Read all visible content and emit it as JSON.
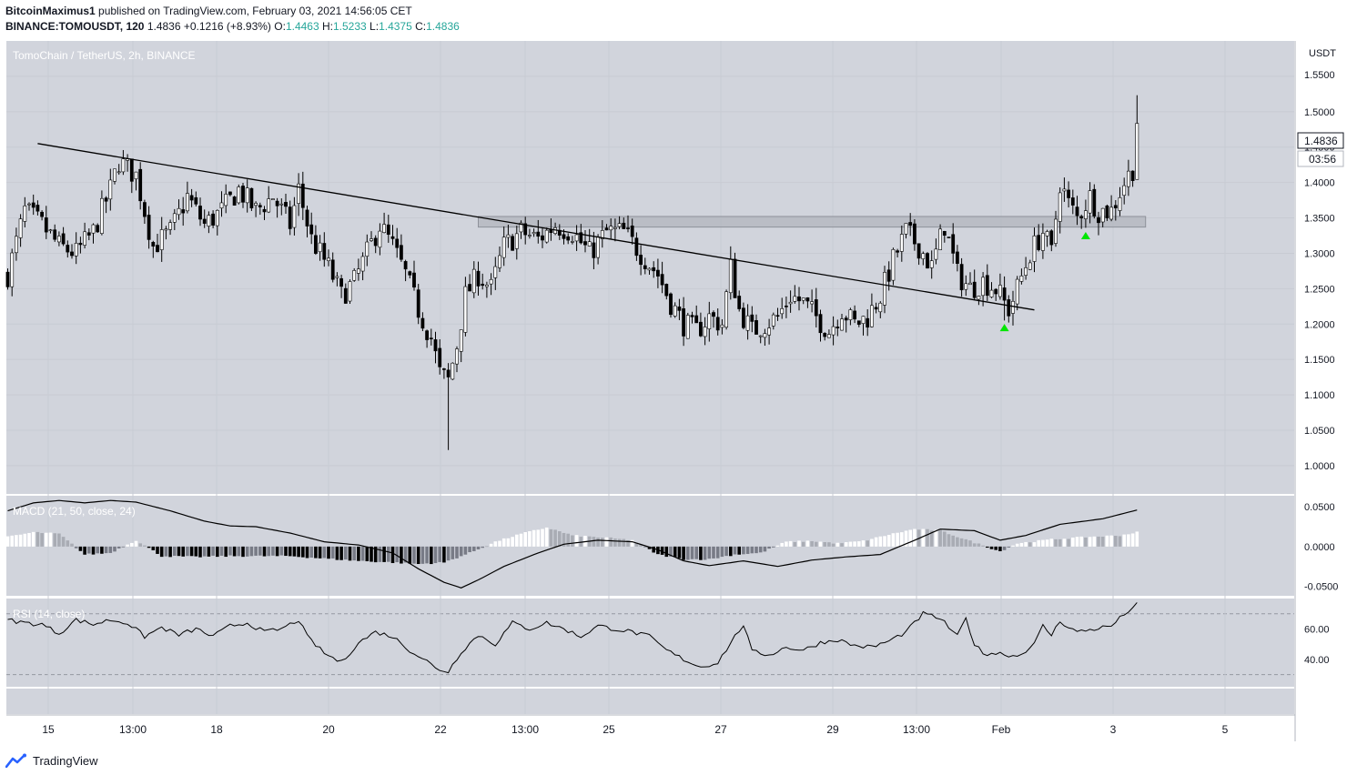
{
  "header": {
    "author": "BitcoinMaximus1",
    "published_text": " published on TradingView.com, February 03, 2021 14:56:05 CET",
    "symbol": "BINANCE:TOMOUSDT, 120",
    "last": "1.4836",
    "change": "+0.1216 (+8.93%)",
    "o_label": "O:",
    "o": "1.4463",
    "h_label": "H:",
    "h": "1.5233",
    "l_label": "L:",
    "l": "1.4375",
    "c_label": "C:",
    "c": "1.4836"
  },
  "chart_title": "TomoChain / TetherUS, 2h, BINANCE",
  "currency": "USDT",
  "price_label": "1.4836",
  "countdown": "03:56",
  "macd_title": "MACD (21, 50, close, 24)",
  "rsi_title": "RSI (14, close)",
  "brand": "TradingView",
  "colors": {
    "panel_bg": "#d1d4dc",
    "up": "#ffffff",
    "down": "#000000",
    "signal": "#00e600",
    "zone": "#b2b5be"
  },
  "chart_data": [
    {
      "type": "candlestick",
      "title": "TomoChain / TetherUS, 2h, BINANCE",
      "x_ticks": [
        "15",
        "13:00",
        "18",
        "20",
        "22",
        "13:00",
        "25",
        "27",
        "29",
        "13:00",
        "Feb",
        "3",
        "5"
      ],
      "y_ticks": [
        "1.0000",
        "1.0500",
        "1.1000",
        "1.1500",
        "1.2000",
        "1.2500",
        "1.3000",
        "1.3500",
        "1.4000",
        "1.4500",
        "1.5000",
        "1.5500"
      ],
      "ylim": [
        0.96,
        1.6
      ],
      "last_price": 1.4836,
      "close_path": [
        [
          0,
          1.27
        ],
        [
          4,
          1.36
        ],
        [
          8,
          1.34
        ],
        [
          12,
          1.31
        ],
        [
          16,
          1.3
        ],
        [
          20,
          1.33
        ],
        [
          24,
          1.39
        ],
        [
          26,
          1.43
        ],
        [
          30,
          1.41
        ],
        [
          34,
          1.31
        ],
        [
          38,
          1.33
        ],
        [
          42,
          1.38
        ],
        [
          46,
          1.34
        ],
        [
          50,
          1.36
        ],
        [
          54,
          1.39
        ],
        [
          58,
          1.36
        ],
        [
          62,
          1.38
        ],
        [
          66,
          1.34
        ],
        [
          68,
          1.39
        ],
        [
          71,
          1.32
        ],
        [
          75,
          1.28
        ],
        [
          78,
          1.24
        ],
        [
          81,
          1.26
        ],
        [
          84,
          1.3
        ],
        [
          87,
          1.34
        ],
        [
          90,
          1.31
        ],
        [
          93,
          1.27
        ],
        [
          96,
          1.22
        ],
        [
          99,
          1.18
        ],
        [
          101,
          1.13
        ],
        [
          103,
          1.12
        ],
        [
          105,
          1.17
        ],
        [
          107,
          1.24
        ],
        [
          110,
          1.27
        ],
        [
          113,
          1.25
        ],
        [
          116,
          1.31
        ],
        [
          120,
          1.33
        ],
        [
          124,
          1.32
        ],
        [
          128,
          1.34
        ],
        [
          132,
          1.33
        ],
        [
          136,
          1.3
        ],
        [
          140,
          1.33
        ],
        [
          144,
          1.33
        ],
        [
          148,
          1.3
        ],
        [
          152,
          1.27
        ],
        [
          155,
          1.23
        ],
        [
          158,
          1.2
        ],
        [
          161,
          1.19
        ],
        [
          164,
          1.21
        ],
        [
          167,
          1.2
        ],
        [
          169,
          1.28
        ],
        [
          171,
          1.22
        ],
        [
          174,
          1.19
        ],
        [
          177,
          1.2
        ],
        [
          180,
          1.21
        ],
        [
          183,
          1.24
        ],
        [
          186,
          1.23
        ],
        [
          189,
          1.21
        ],
        [
          192,
          1.19
        ],
        [
          195,
          1.22
        ],
        [
          198,
          1.2
        ],
        [
          201,
          1.21
        ],
        [
          204,
          1.24
        ],
        [
          207,
          1.29
        ],
        [
          210,
          1.33
        ],
        [
          213,
          1.31
        ],
        [
          216,
          1.28
        ],
        [
          219,
          1.34
        ],
        [
          222,
          1.27
        ],
        [
          225,
          1.25
        ],
        [
          228,
          1.26
        ],
        [
          231,
          1.25
        ],
        [
          234,
          1.22
        ],
        [
          236,
          1.25
        ],
        [
          239,
          1.3
        ],
        [
          242,
          1.33
        ],
        [
          244,
          1.3
        ],
        [
          246,
          1.4
        ],
        [
          248,
          1.37
        ],
        [
          250,
          1.35
        ],
        [
          253,
          1.38
        ],
        [
          255,
          1.36
        ],
        [
          258,
          1.36
        ],
        [
          261,
          1.4
        ],
        [
          263,
          1.42
        ],
        [
          264,
          1.4836
        ]
      ],
      "descending_trendline": {
        "from": [
          7,
          1.455
        ],
        "to": [
          240,
          1.22
        ]
      },
      "resistance_zone": {
        "from": 110,
        "to": 266,
        "low": 1.337,
        "high": 1.352
      },
      "signals": [
        {
          "x": 233,
          "price": 1.195
        },
        {
          "x": 252,
          "price": 1.325
        }
      ]
    },
    {
      "type": "bar",
      "title": "MACD (21, 50, close, 24)",
      "y_ticks": [
        "0.0500",
        "0.0000",
        "-0.0500"
      ],
      "ylim": [
        -0.062,
        0.064
      ],
      "macd_line": [
        [
          0,
          0.045
        ],
        [
          6,
          0.055
        ],
        [
          12,
          0.058
        ],
        [
          18,
          0.055
        ],
        [
          24,
          0.058
        ],
        [
          30,
          0.056
        ],
        [
          38,
          0.045
        ],
        [
          46,
          0.032
        ],
        [
          52,
          0.026
        ],
        [
          58,
          0.025
        ],
        [
          66,
          0.017
        ],
        [
          74,
          0.006
        ],
        [
          82,
          0.002
        ],
        [
          90,
          -0.008
        ],
        [
          96,
          -0.028
        ],
        [
          102,
          -0.045
        ],
        [
          106,
          -0.052
        ],
        [
          110,
          -0.042
        ],
        [
          116,
          -0.025
        ],
        [
          124,
          -0.008
        ],
        [
          130,
          0.003
        ],
        [
          138,
          0.008
        ],
        [
          146,
          0.006
        ],
        [
          152,
          -0.004
        ],
        [
          158,
          -0.018
        ],
        [
          164,
          -0.024
        ],
        [
          172,
          -0.018
        ],
        [
          180,
          -0.025
        ],
        [
          188,
          -0.017
        ],
        [
          196,
          -0.013
        ],
        [
          204,
          -0.01
        ],
        [
          212,
          0.008
        ],
        [
          218,
          0.022
        ],
        [
          226,
          0.02
        ],
        [
          232,
          0.008
        ],
        [
          238,
          0.014
        ],
        [
          246,
          0.028
        ],
        [
          256,
          0.035
        ],
        [
          264,
          0.046
        ]
      ],
      "histogram": [
        [
          0,
          0.012
        ],
        [
          6,
          0.018
        ],
        [
          12,
          0.016
        ],
        [
          18,
          -0.01
        ],
        [
          24,
          -0.008
        ],
        [
          30,
          0.008
        ],
        [
          36,
          -0.012
        ],
        [
          44,
          -0.013
        ],
        [
          52,
          -0.012
        ],
        [
          60,
          -0.012
        ],
        [
          66,
          -0.012
        ],
        [
          74,
          -0.015
        ],
        [
          82,
          -0.018
        ],
        [
          90,
          -0.02
        ],
        [
          96,
          -0.022
        ],
        [
          102,
          -0.02
        ],
        [
          108,
          -0.008
        ],
        [
          114,
          0.006
        ],
        [
          120,
          0.016
        ],
        [
          126,
          0.024
        ],
        [
          132,
          0.014
        ],
        [
          140,
          0.011
        ],
        [
          146,
          0.008
        ],
        [
          152,
          -0.01
        ],
        [
          158,
          -0.016
        ],
        [
          164,
          -0.016
        ],
        [
          170,
          -0.01
        ],
        [
          176,
          -0.008
        ],
        [
          182,
          0.006
        ],
        [
          188,
          0.007
        ],
        [
          194,
          0.004
        ],
        [
          200,
          0.007
        ],
        [
          206,
          0.015
        ],
        [
          212,
          0.022
        ],
        [
          218,
          0.02
        ],
        [
          226,
          0.005
        ],
        [
          232,
          -0.006
        ],
        [
          236,
          0.004
        ],
        [
          244,
          0.009
        ],
        [
          252,
          0.012
        ],
        [
          260,
          0.014
        ],
        [
          264,
          0.018
        ]
      ]
    },
    {
      "type": "line",
      "title": "RSI (14, close)",
      "y_ticks": [
        "60.00",
        "40.00"
      ],
      "ylim": [
        22,
        80
      ],
      "bands": [
        70,
        30
      ],
      "values": [
        [
          0,
          66
        ],
        [
          4,
          64
        ],
        [
          8,
          63
        ],
        [
          12,
          57
        ],
        [
          16,
          66
        ],
        [
          20,
          63
        ],
        [
          24,
          66
        ],
        [
          28,
          64
        ],
        [
          32,
          55
        ],
        [
          36,
          61
        ],
        [
          40,
          56
        ],
        [
          44,
          60
        ],
        [
          48,
          55
        ],
        [
          52,
          62
        ],
        [
          56,
          64
        ],
        [
          60,
          58
        ],
        [
          64,
          60
        ],
        [
          68,
          66
        ],
        [
          70,
          55
        ],
        [
          74,
          44
        ],
        [
          78,
          38
        ],
        [
          82,
          51
        ],
        [
          86,
          58
        ],
        [
          90,
          55
        ],
        [
          94,
          46
        ],
        [
          98,
          39
        ],
        [
          100,
          34
        ],
        [
          103,
          32
        ],
        [
          106,
          45
        ],
        [
          110,
          56
        ],
        [
          114,
          50
        ],
        [
          118,
          64
        ],
        [
          122,
          60
        ],
        [
          126,
          64
        ],
        [
          130,
          60
        ],
        [
          134,
          55
        ],
        [
          138,
          62
        ],
        [
          142,
          60
        ],
        [
          146,
          58
        ],
        [
          150,
          55
        ],
        [
          154,
          46
        ],
        [
          158,
          40
        ],
        [
          162,
          35
        ],
        [
          166,
          38
        ],
        [
          170,
          55
        ],
        [
          172,
          63
        ],
        [
          174,
          45
        ],
        [
          178,
          43
        ],
        [
          182,
          48
        ],
        [
          186,
          46
        ],
        [
          190,
          51
        ],
        [
          194,
          53
        ],
        [
          198,
          49
        ],
        [
          202,
          48
        ],
        [
          206,
          52
        ],
        [
          210,
          58
        ],
        [
          214,
          70
        ],
        [
          218,
          67
        ],
        [
          222,
          55
        ],
        [
          224,
          67
        ],
        [
          226,
          50
        ],
        [
          228,
          44
        ],
        [
          232,
          44
        ],
        [
          236,
          42
        ],
        [
          240,
          50
        ],
        [
          242,
          62
        ],
        [
          244,
          56
        ],
        [
          246,
          65
        ],
        [
          250,
          58
        ],
        [
          254,
          60
        ],
        [
          258,
          62
        ],
        [
          262,
          72
        ],
        [
          264,
          76
        ]
      ]
    }
  ]
}
